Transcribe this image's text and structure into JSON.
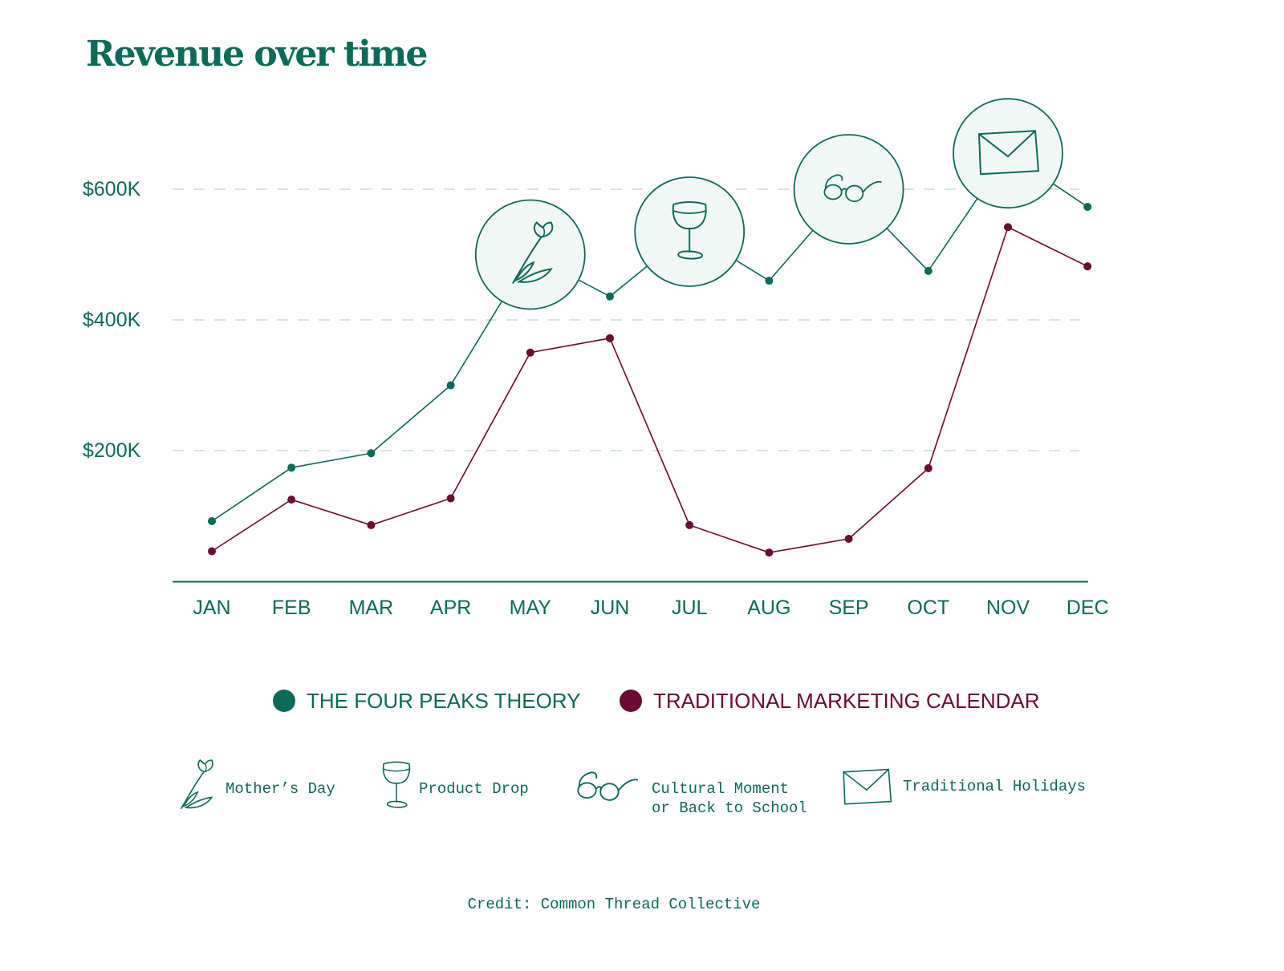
{
  "title": "Revenue over time",
  "colors": {
    "teal": "#0b6b58",
    "maroon": "#6b0a35",
    "grid": "#c9dcd6",
    "bubble_fill": "#f1f7f4"
  },
  "chart_data": {
    "type": "line",
    "title": "Revenue over time",
    "categories": [
      "JAN",
      "FEB",
      "MAR",
      "APR",
      "MAY",
      "JUN",
      "JUL",
      "AUG",
      "SEP",
      "OCT",
      "NOV",
      "DEC"
    ],
    "y_ticks": [
      {
        "value": 200,
        "label": "$200K"
      },
      {
        "value": 400,
        "label": "$400K"
      },
      {
        "value": 600,
        "label": "$600K"
      }
    ],
    "ylim": [
      0,
      600
    ],
    "y_unit": "$K",
    "grid": "dashed horizontal",
    "series": [
      {
        "name": "THE FOUR PEAKS THEORY",
        "color": "#0b6b58",
        "values": [
          92,
          174,
          196,
          300,
          500,
          436,
          535,
          460,
          600,
          475,
          655,
          573
        ]
      },
      {
        "name": "TRADITIONAL MARKETING CALENDAR",
        "color": "#6b0a35",
        "values": [
          46,
          125,
          86,
          127,
          350,
          372,
          86,
          44,
          65,
          173,
          542,
          482
        ]
      }
    ],
    "annotations": [
      {
        "category": "MAY",
        "icon": "tulip-icon",
        "meaning": "Mother’s Day"
      },
      {
        "category": "JUL",
        "icon": "wine-glass-icon",
        "meaning": "Product Drop"
      },
      {
        "category": "SEP",
        "icon": "glasses-icon",
        "meaning": "Cultural Moment or Back to School"
      },
      {
        "category": "NOV",
        "icon": "envelope-icon",
        "meaning": "Traditional Holidays"
      }
    ]
  },
  "legend": [
    {
      "label": "THE FOUR PEAKS THEORY",
      "color": "#0b6b58"
    },
    {
      "label": "TRADITIONAL MARKETING CALENDAR",
      "color": "#6b0a35"
    }
  ],
  "icon_legend": [
    {
      "icon": "tulip-icon",
      "lines": [
        "Mother’s Day"
      ]
    },
    {
      "icon": "wine-glass-icon",
      "lines": [
        "Product Drop"
      ]
    },
    {
      "icon": "glasses-icon",
      "lines": [
        "Cultural Moment",
        "or Back to School"
      ]
    },
    {
      "icon": "envelope-icon",
      "lines": [
        "Traditional Holidays"
      ]
    }
  ],
  "credit": "Credit: Common Thread Collective"
}
